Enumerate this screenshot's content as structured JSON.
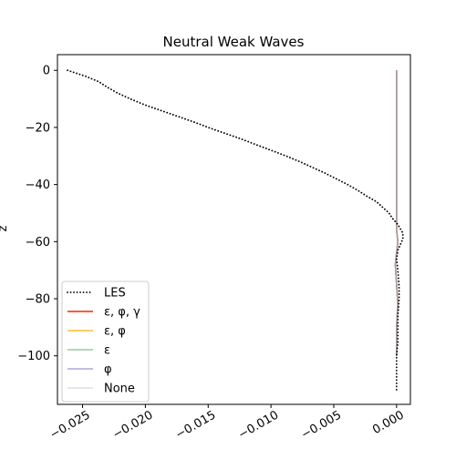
{
  "chart_data": {
    "type": "line",
    "title": "Neutral Weak Waves",
    "xlabel": "",
    "ylabel": "z",
    "xlim": [
      -0.027,
      0.0011
    ],
    "ylim": [
      -117,
      5.5
    ],
    "x_ticks": [
      -0.025,
      -0.02,
      -0.015,
      -0.01,
      -0.005,
      0.0
    ],
    "x_tick_labels": [
      "−0.025",
      "−0.020",
      "−0.015",
      "−0.010",
      "−0.005",
      "0.000"
    ],
    "y_ticks": [
      0,
      -20,
      -40,
      -60,
      -80,
      -100
    ],
    "y_tick_labels": [
      "0",
      "−20",
      "−40",
      "−60",
      "−80",
      "−100"
    ],
    "grid": false,
    "legend_position": "lower-left",
    "series": [
      {
        "name": "LES",
        "color": "#000000",
        "style": "dotted",
        "points": [
          [
            -0.0262,
            0
          ],
          [
            -0.0248,
            -2
          ],
          [
            -0.0237,
            -4
          ],
          [
            -0.023,
            -6
          ],
          [
            -0.0222,
            -8
          ],
          [
            -0.0212,
            -10
          ],
          [
            -0.0201,
            -12
          ],
          [
            -0.0188,
            -14
          ],
          [
            -0.0175,
            -16
          ],
          [
            -0.0162,
            -18
          ],
          [
            -0.015,
            -20
          ],
          [
            -0.0137,
            -22
          ],
          [
            -0.0124,
            -24
          ],
          [
            -0.0112,
            -26
          ],
          [
            -0.01,
            -28
          ],
          [
            -0.0088,
            -30
          ],
          [
            -0.0077,
            -32
          ],
          [
            -0.0067,
            -34
          ],
          [
            -0.0057,
            -36
          ],
          [
            -0.0048,
            -38
          ],
          [
            -0.0039,
            -40
          ],
          [
            -0.0031,
            -42
          ],
          [
            -0.0024,
            -44
          ],
          [
            -0.0016,
            -46
          ],
          [
            -0.0011,
            -48
          ],
          [
            -0.0006,
            -50
          ],
          [
            -0.0003,
            -52
          ],
          [
            0.0001,
            -54
          ],
          [
            0.0005,
            -57
          ],
          [
            0.0005,
            -59
          ],
          [
            0.0003,
            -61
          ],
          [
            0.0001,
            -63
          ],
          [
            0.0,
            -66
          ],
          [
            0.0001,
            -70
          ],
          [
            0.0002,
            -76
          ],
          [
            0.0002,
            -80
          ],
          [
            0.0001,
            -86
          ],
          [
            0.0001,
            -95
          ],
          [
            0.0,
            -100
          ],
          [
            0.0,
            -106
          ],
          [
            0.0,
            -112
          ]
        ]
      },
      {
        "name": "ε, φ, γ",
        "color": "#ff2200",
        "style": "solid",
        "points": [
          [
            0.0,
            0
          ],
          [
            0.0,
            -50
          ],
          [
            0.0,
            -56
          ],
          [
            0.0001,
            -60
          ],
          [
            0.0,
            -64
          ],
          [
            -0.0001,
            -68
          ],
          [
            0.0,
            -75
          ],
          [
            0.0001,
            -82
          ],
          [
            0.0,
            -90
          ],
          [
            0.0,
            -100
          ]
        ]
      },
      {
        "name": "ε, φ",
        "color": "#ffbb33",
        "style": "solid",
        "points": [
          [
            0.0,
            0
          ],
          [
            0.0,
            -50
          ],
          [
            0.0,
            -56
          ],
          [
            0.0001,
            -60
          ],
          [
            0.0,
            -64
          ],
          [
            -0.0001,
            -68
          ],
          [
            0.0,
            -75
          ],
          [
            0.0001,
            -82
          ],
          [
            0.0,
            -90
          ],
          [
            0.0,
            -100
          ]
        ]
      },
      {
        "name": "ε",
        "color": "#99cc99",
        "style": "solid",
        "points": [
          [
            0.0,
            0
          ],
          [
            0.0,
            -50
          ],
          [
            0.0,
            -56
          ],
          [
            0.0001,
            -60
          ],
          [
            0.0,
            -64
          ],
          [
            -0.0001,
            -68
          ],
          [
            0.0,
            -75
          ],
          [
            0.0001,
            -82
          ],
          [
            0.0,
            -90
          ],
          [
            0.0,
            -100
          ]
        ]
      },
      {
        "name": "φ",
        "color": "#aaaadd",
        "style": "solid",
        "points": [
          [
            0.0,
            0
          ],
          [
            0.0,
            -50
          ],
          [
            0.0,
            -56
          ],
          [
            0.0001,
            -60
          ],
          [
            0.0,
            -64
          ],
          [
            -0.0001,
            -68
          ],
          [
            0.0,
            -75
          ],
          [
            0.0001,
            -82
          ],
          [
            0.0,
            -90
          ],
          [
            0.0,
            -100
          ]
        ]
      },
      {
        "name": "None",
        "color": "#aa9999",
        "legend_color": "#dddddd",
        "style": "solid",
        "points": [
          [
            0.0,
            0
          ],
          [
            0.0,
            -50
          ],
          [
            0.0,
            -56
          ],
          [
            0.0001,
            -60
          ],
          [
            0.0,
            -64
          ],
          [
            -0.0001,
            -68
          ],
          [
            0.0,
            -75
          ],
          [
            0.0001,
            -82
          ],
          [
            0.0,
            -90
          ],
          [
            0.0,
            -100
          ]
        ]
      }
    ]
  }
}
